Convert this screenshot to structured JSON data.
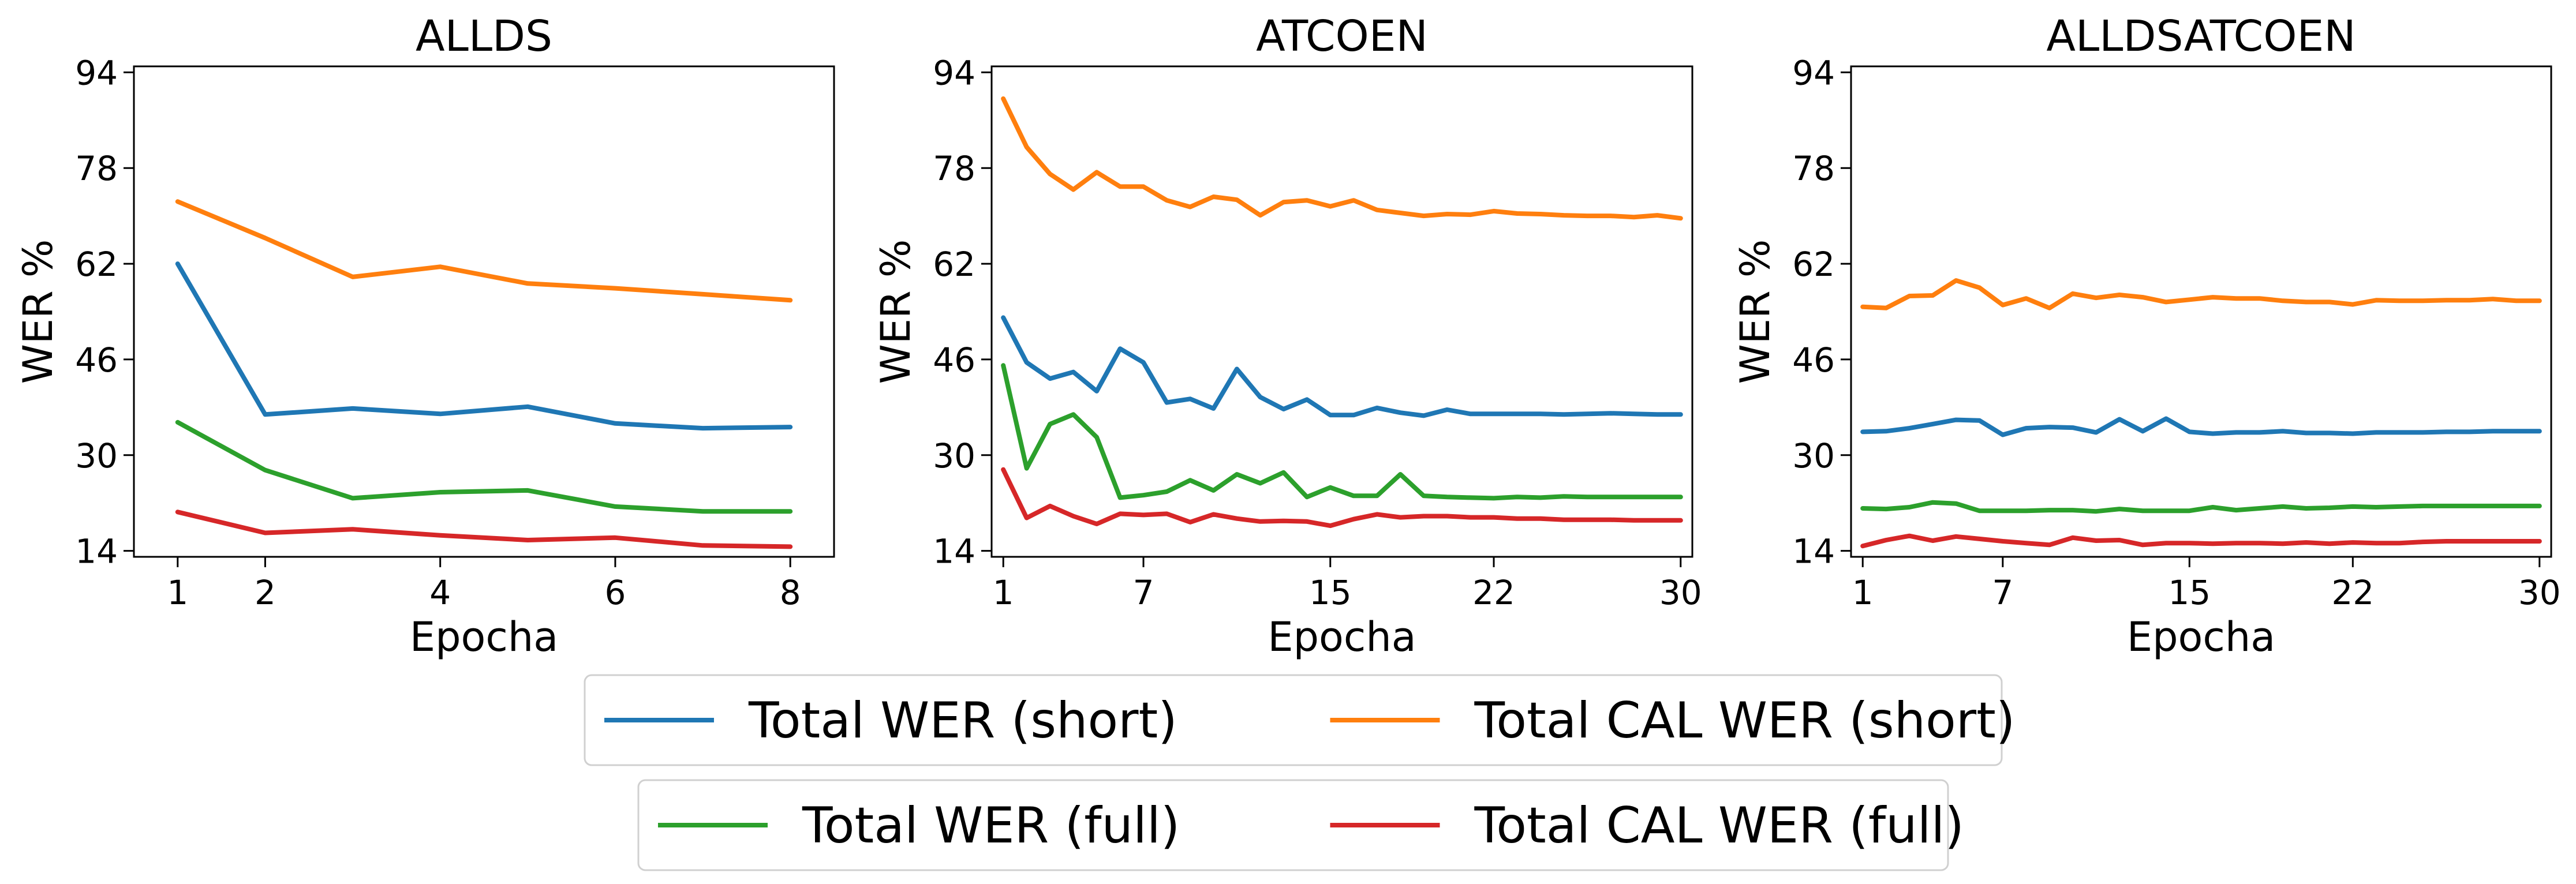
{
  "colors": {
    "total_wer_short": "#1f77b4",
    "total_cal_wer_short": "#ff7f0e",
    "total_wer_full": "#2ca02c",
    "total_cal_wer_full": "#d62728"
  },
  "legend": {
    "position": "bottom-center",
    "rows": [
      [
        "Total WER (short)",
        "Total CAL WER (short)"
      ],
      [
        "Total WER (full)",
        "Total CAL WER (full)"
      ]
    ]
  },
  "chart_data": [
    {
      "type": "line",
      "title": "ALLDS",
      "xlabel": "Epocha",
      "ylabel": "WER %",
      "xlim": [
        0.5,
        8.5
      ],
      "ylim": [
        13,
        95
      ],
      "xticks": [
        1,
        2,
        4,
        6,
        8
      ],
      "yticks": [
        14,
        30,
        46,
        62,
        78,
        94
      ],
      "grid": false,
      "x": [
        1,
        2,
        3,
        4,
        5,
        6,
        7,
        8
      ],
      "series": [
        {
          "name": "Total WER (short)",
          "color": "#1f77b4",
          "values": [
            62.0,
            36.8,
            37.8,
            36.9,
            38.1,
            35.3,
            34.5,
            34.7
          ]
        },
        {
          "name": "Total CAL WER (short)",
          "color": "#ff7f0e",
          "values": [
            72.4,
            66.3,
            59.8,
            61.5,
            58.7,
            57.9,
            56.9,
            55.9
          ]
        },
        {
          "name": "Total WER (full)",
          "color": "#2ca02c",
          "values": [
            35.5,
            27.5,
            22.8,
            23.8,
            24.1,
            21.4,
            20.6,
            20.6
          ]
        },
        {
          "name": "Total CAL WER (full)",
          "color": "#d62728",
          "values": [
            20.5,
            17.0,
            17.6,
            16.6,
            15.8,
            16.2,
            14.9,
            14.7
          ]
        }
      ]
    },
    {
      "type": "line",
      "title": "ATCOEN",
      "xlabel": "Epocha",
      "ylabel": "WER %",
      "xlim": [
        0.5,
        30.5
      ],
      "ylim": [
        13,
        95
      ],
      "xticks": [
        1,
        7,
        15,
        22,
        30
      ],
      "yticks": [
        14,
        30,
        46,
        62,
        78,
        94
      ],
      "grid": false,
      "x": [
        1,
        2,
        3,
        4,
        5,
        6,
        7,
        8,
        9,
        10,
        11,
        12,
        13,
        14,
        15,
        16,
        17,
        18,
        19,
        20,
        21,
        22,
        23,
        24,
        25,
        26,
        27,
        28,
        29,
        30
      ],
      "series": [
        {
          "name": "Total WER (short)",
          "color": "#1f77b4",
          "values": [
            53.0,
            45.5,
            42.8,
            43.9,
            40.7,
            47.8,
            45.5,
            38.8,
            39.4,
            37.8,
            44.4,
            39.7,
            37.7,
            39.3,
            36.7,
            36.7,
            37.9,
            37.1,
            36.6,
            37.6,
            36.9,
            36.9,
            36.9,
            36.9,
            36.8,
            36.9,
            37.0,
            36.9,
            36.8,
            36.8
          ]
        },
        {
          "name": "Total CAL WER (short)",
          "color": "#ff7f0e",
          "values": [
            89.6,
            81.5,
            77.0,
            74.4,
            77.3,
            74.9,
            74.9,
            72.6,
            71.5,
            73.2,
            72.7,
            70.1,
            72.3,
            72.6,
            71.6,
            72.6,
            71.0,
            70.5,
            70.0,
            70.3,
            70.2,
            70.8,
            70.4,
            70.3,
            70.1,
            70.0,
            70.0,
            69.8,
            70.1,
            69.6
          ]
        },
        {
          "name": "Total WER (full)",
          "color": "#2ca02c",
          "values": [
            45.0,
            27.8,
            35.2,
            36.8,
            33.0,
            22.9,
            23.3,
            23.9,
            25.8,
            24.1,
            26.8,
            25.3,
            27.1,
            23.0,
            24.6,
            23.2,
            23.2,
            26.8,
            23.2,
            23.0,
            22.9,
            22.8,
            23.0,
            22.9,
            23.1,
            23.0,
            23.0,
            23.0,
            23.0,
            23.0
          ]
        },
        {
          "name": "Total CAL WER (full)",
          "color": "#d62728",
          "values": [
            27.6,
            19.5,
            21.5,
            19.8,
            18.5,
            20.2,
            20.0,
            20.2,
            18.8,
            20.1,
            19.4,
            18.9,
            19.0,
            18.9,
            18.2,
            19.3,
            20.1,
            19.6,
            19.8,
            19.8,
            19.6,
            19.6,
            19.4,
            19.4,
            19.2,
            19.2,
            19.2,
            19.1,
            19.1,
            19.1
          ]
        }
      ]
    },
    {
      "type": "line",
      "title": "ALLDSATCOEN",
      "xlabel": "Epocha",
      "ylabel": "WER %",
      "xlim": [
        0.5,
        30.5
      ],
      "ylim": [
        13,
        95
      ],
      "xticks": [
        1,
        7,
        15,
        22,
        30
      ],
      "yticks": [
        14,
        30,
        46,
        62,
        78,
        94
      ],
      "grid": false,
      "x": [
        1,
        2,
        3,
        4,
        5,
        6,
        7,
        8,
        9,
        10,
        11,
        12,
        13,
        14,
        15,
        16,
        17,
        18,
        19,
        20,
        21,
        22,
        23,
        24,
        25,
        26,
        27,
        28,
        29,
        30
      ],
      "series": [
        {
          "name": "Total WER (short)",
          "color": "#1f77b4",
          "values": [
            33.9,
            34.0,
            34.5,
            35.2,
            35.9,
            35.8,
            33.4,
            34.5,
            34.7,
            34.6,
            33.8,
            36.0,
            34.0,
            36.1,
            33.9,
            33.6,
            33.8,
            33.8,
            34.0,
            33.7,
            33.7,
            33.6,
            33.8,
            33.8,
            33.8,
            33.9,
            33.9,
            34.0,
            34.0,
            34.0
          ]
        },
        {
          "name": "Total CAL WER (short)",
          "color": "#ff7f0e",
          "values": [
            54.8,
            54.6,
            56.6,
            56.7,
            59.2,
            58.0,
            55.1,
            56.2,
            54.6,
            57.0,
            56.3,
            56.8,
            56.4,
            55.6,
            56.0,
            56.4,
            56.2,
            56.2,
            55.8,
            55.6,
            55.6,
            55.2,
            55.9,
            55.8,
            55.8,
            55.9,
            55.9,
            56.1,
            55.8,
            55.8
          ]
        },
        {
          "name": "Total WER (full)",
          "color": "#2ca02c",
          "values": [
            21.1,
            21.0,
            21.3,
            22.1,
            21.9,
            20.7,
            20.7,
            20.7,
            20.8,
            20.8,
            20.6,
            21.0,
            20.7,
            20.7,
            20.7,
            21.3,
            20.8,
            21.1,
            21.4,
            21.1,
            21.2,
            21.4,
            21.3,
            21.4,
            21.5,
            21.5,
            21.5,
            21.5,
            21.5,
            21.5
          ]
        },
        {
          "name": "Total CAL WER (full)",
          "color": "#d62728",
          "values": [
            14.8,
            15.8,
            16.5,
            15.7,
            16.4,
            16.0,
            15.6,
            15.3,
            15.0,
            16.2,
            15.7,
            15.8,
            15.0,
            15.3,
            15.3,
            15.2,
            15.3,
            15.3,
            15.2,
            15.4,
            15.2,
            15.4,
            15.3,
            15.3,
            15.5,
            15.6,
            15.6,
            15.6,
            15.6,
            15.6
          ]
        }
      ]
    }
  ]
}
